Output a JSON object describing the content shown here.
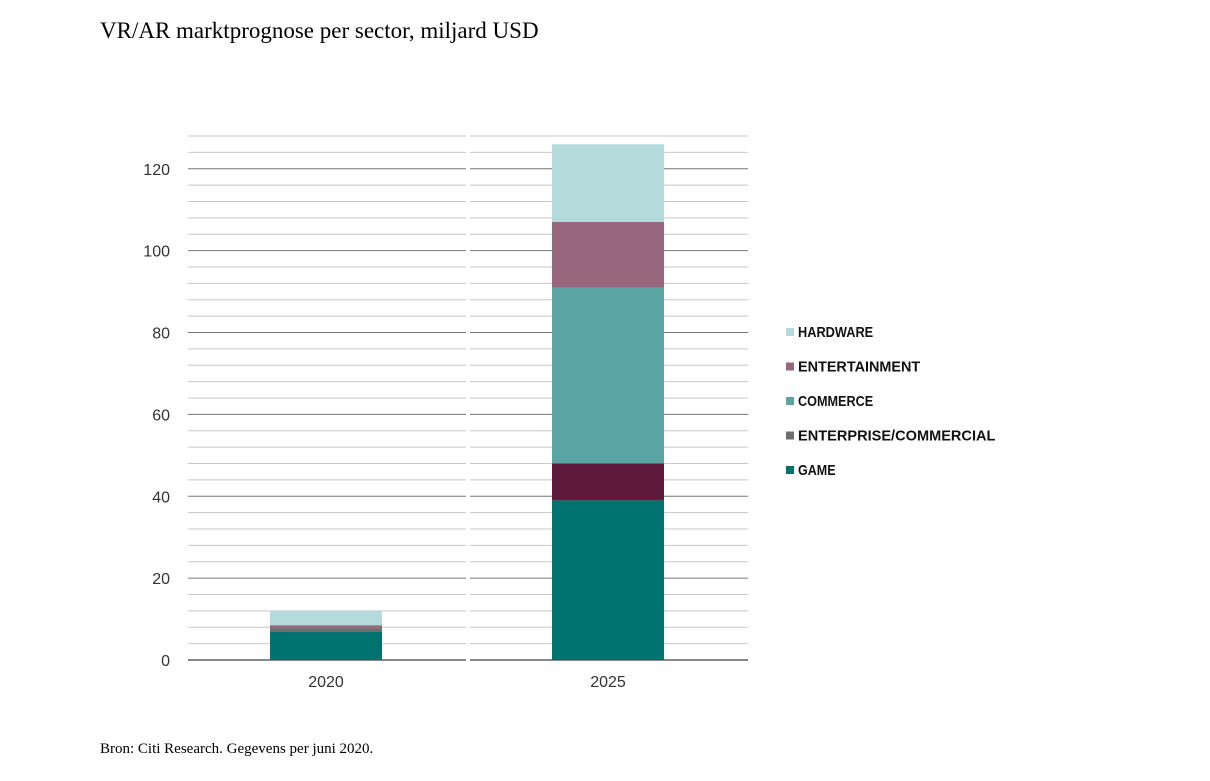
{
  "chart_data": {
    "type": "stacked_bar",
    "title": "VR/AR marktprognose  per sector, miljard USD",
    "source": "Bron: Citi Research. Gegevens per juni 2020.",
    "categories": [
      "2020",
      "2025"
    ],
    "series": [
      {
        "name": "GAME",
        "color": "#00736e",
        "values": [
          7,
          39
        ]
      },
      {
        "name": "ENTERPRISE/COMMERCIAL",
        "color": "#6e6e6e",
        "colors": [
          "#6e6e6e",
          "#5e1a3d"
        ],
        "values": [
          0.8,
          9
        ]
      },
      {
        "name": "COMMERCE",
        "color": "#5aa5a3",
        "values": [
          0,
          43
        ]
      },
      {
        "name": "ENTERTAINMENT",
        "color": "#98677d",
        "values": [
          0.7,
          16
        ]
      },
      {
        "name": "HARDWARE",
        "color": "#b4dadb",
        "values": [
          3.5,
          19
        ]
      }
    ],
    "ylim": [
      0,
      128
    ],
    "yticks": [
      0,
      20,
      40,
      60,
      80,
      100,
      120
    ],
    "minor_yticks": [
      4,
      8,
      12,
      16,
      24,
      28,
      32,
      36,
      44,
      48,
      52,
      56,
      64,
      68,
      72,
      76,
      84,
      88,
      92,
      96,
      104,
      108,
      112,
      116,
      124,
      128
    ],
    "grid": true,
    "legend": "right"
  }
}
